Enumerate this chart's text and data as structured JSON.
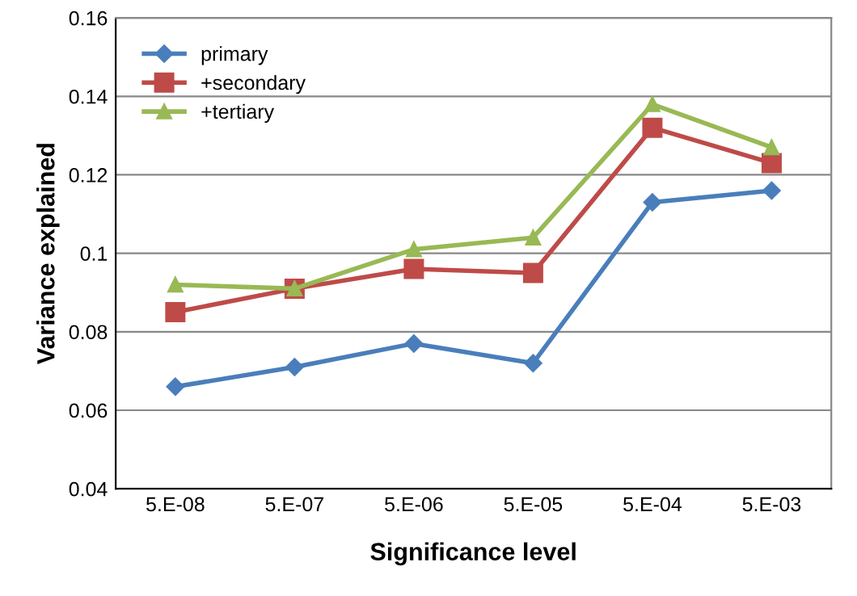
{
  "chart_data": {
    "type": "line",
    "xlabel": "Significance level",
    "ylabel": "Variance explained",
    "categories": [
      "5.E-08",
      "5.E-07",
      "5.E-06",
      "5.E-05",
      "5.E-04",
      "5.E-03"
    ],
    "series": [
      {
        "name": "primary",
        "color": "#4a7ebb",
        "marker": "diamond",
        "values": [
          0.066,
          0.071,
          0.077,
          0.072,
          0.113,
          0.116
        ]
      },
      {
        "name": "+secondary",
        "color": "#be4b48",
        "marker": "square",
        "values": [
          0.085,
          0.091,
          0.096,
          0.095,
          0.132,
          0.123
        ]
      },
      {
        "name": "+tertiary",
        "color": "#98b954",
        "marker": "triangle",
        "values": [
          0.092,
          0.091,
          0.101,
          0.104,
          0.138,
          0.127
        ]
      }
    ],
    "ylim": [
      0.04,
      0.16
    ],
    "yticks": [
      0.04,
      0.06,
      0.08,
      0.1,
      0.12,
      0.14,
      0.16
    ],
    "grid": "y",
    "legend": "top left",
    "line_style": "solid"
  }
}
